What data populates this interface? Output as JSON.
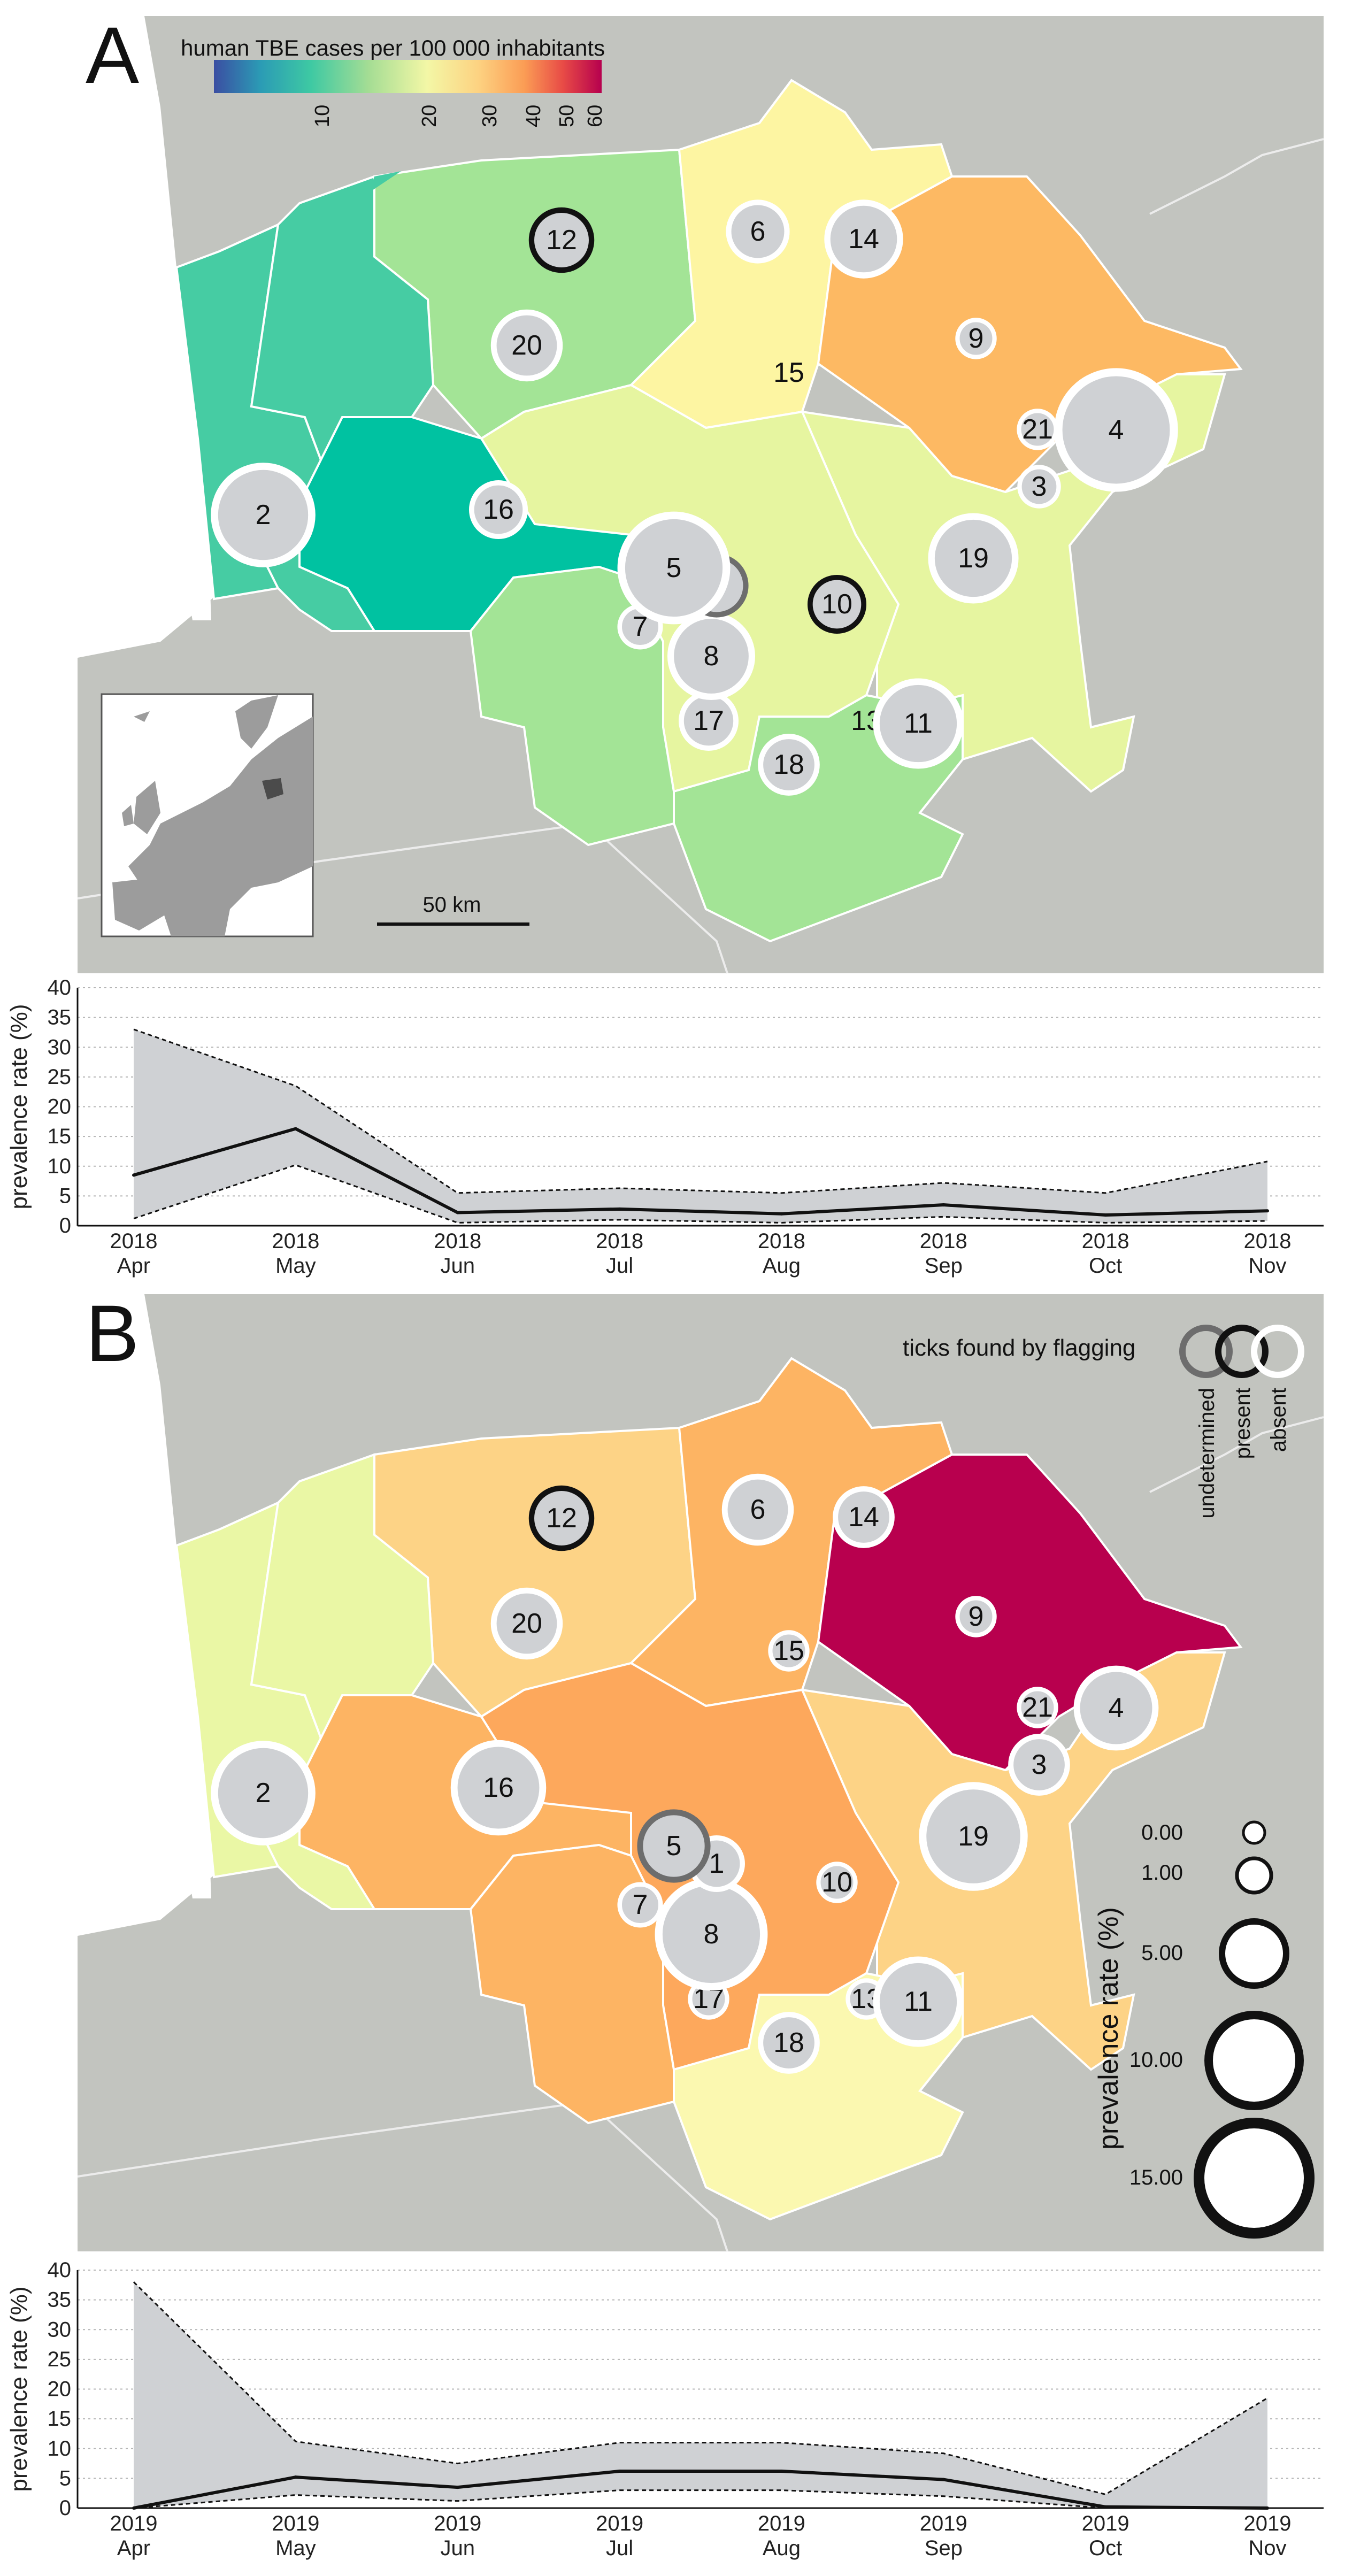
{
  "panels": [
    {
      "letter": "A",
      "colorbar": {
        "title": "human TBE cases per 100 000 inhabitants",
        "ticks": [
          "10",
          "20",
          "30",
          "40",
          "50",
          "60"
        ]
      },
      "scalebar": "50 km",
      "sites": [
        {
          "id": "1",
          "size": 2.0,
          "status": "undetermined"
        },
        {
          "id": "2",
          "size": 9.0,
          "status": "absent"
        },
        {
          "id": "3",
          "size": 0.4,
          "status": "absent"
        },
        {
          "id": "4",
          "size": 14.0,
          "status": "absent"
        },
        {
          "id": "5",
          "size": 11.0,
          "status": "absent"
        },
        {
          "id": "6",
          "size": 2.0,
          "status": "absent"
        },
        {
          "id": "7",
          "size": 0.5,
          "status": "absent"
        },
        {
          "id": "8",
          "size": 5.5,
          "status": "absent"
        },
        {
          "id": "9",
          "size": 0.3,
          "status": "absent"
        },
        {
          "id": "10",
          "size": 1.5,
          "status": "present"
        },
        {
          "id": "11",
          "size": 6.0,
          "status": "absent"
        },
        {
          "id": "12",
          "size": 2.2,
          "status": "present"
        },
        {
          "id": "13",
          "size": 0.0,
          "status": "none"
        },
        {
          "id": "14",
          "size": 4.0,
          "status": "absent"
        },
        {
          "id": "15",
          "size": 0.0,
          "status": "none"
        },
        {
          "id": "16",
          "size": 1.5,
          "status": "absent"
        },
        {
          "id": "17",
          "size": 1.6,
          "status": "absent"
        },
        {
          "id": "18",
          "size": 1.8,
          "status": "absent"
        },
        {
          "id": "19",
          "size": 6.0,
          "status": "absent"
        },
        {
          "id": "20",
          "size": 3.0,
          "status": "absent"
        },
        {
          "id": "21",
          "size": 0.3,
          "status": "absent"
        }
      ]
    },
    {
      "letter": "B",
      "legend_status": {
        "title": "ticks found by flagging",
        "labels": [
          "undetermined",
          "present",
          "absent"
        ]
      },
      "legend_size": {
        "title": "prevalence rate (%)",
        "values": [
          "0.00",
          "1.00",
          "5.00",
          "10.00",
          "15.00"
        ]
      },
      "sites": [
        {
          "id": "1",
          "size": 1.3,
          "status": "absent"
        },
        {
          "id": "2",
          "size": 9.0,
          "status": "absent"
        },
        {
          "id": "3",
          "size": 1.8,
          "status": "absent"
        },
        {
          "id": "4",
          "size": 5.0,
          "status": "absent"
        },
        {
          "id": "5",
          "size": 3.2,
          "status": "undetermined"
        },
        {
          "id": "6",
          "size": 3.0,
          "status": "absent"
        },
        {
          "id": "7",
          "size": 0.5,
          "status": "absent"
        },
        {
          "id": "8",
          "size": 11.0,
          "status": "absent"
        },
        {
          "id": "9",
          "size": 0.3,
          "status": "absent"
        },
        {
          "id": "10",
          "size": 0.3,
          "status": "absent"
        },
        {
          "id": "11",
          "size": 6.0,
          "status": "absent"
        },
        {
          "id": "12",
          "size": 2.2,
          "status": "present"
        },
        {
          "id": "13",
          "size": 0.3,
          "status": "absent"
        },
        {
          "id": "14",
          "size": 1.8,
          "status": "absent"
        },
        {
          "id": "15",
          "size": 0.3,
          "status": "absent"
        },
        {
          "id": "16",
          "size": 7.0,
          "status": "absent"
        },
        {
          "id": "17",
          "size": 0.3,
          "status": "absent"
        },
        {
          "id": "18",
          "size": 1.8,
          "status": "absent"
        },
        {
          "id": "19",
          "size": 10.0,
          "status": "absent"
        },
        {
          "id": "20",
          "size": 3.0,
          "status": "absent"
        },
        {
          "id": "21",
          "size": 0.3,
          "status": "absent"
        }
      ]
    }
  ],
  "chart_data": [
    {
      "type": "area",
      "panel": "A",
      "xlabel": "",
      "ylabel": "prevalence rate (%)",
      "ylim": [
        0,
        40
      ],
      "yticks": [
        "0",
        "5",
        "10",
        "15",
        "20",
        "25",
        "30",
        "35",
        "40"
      ],
      "x": [
        "2018\nApr",
        "2018\nMay",
        "2018\nJun",
        "2018\nJul",
        "2018\nAug",
        "2018\nSep",
        "2018\nOct",
        "2018\nNov"
      ],
      "series": [
        {
          "name": "upper",
          "values": [
            33,
            23.5,
            5.5,
            6.3,
            5.5,
            7.2,
            5.5,
            10.8
          ]
        },
        {
          "name": "prevalence",
          "values": [
            8.5,
            16.3,
            2.2,
            2.8,
            2.0,
            3.5,
            1.8,
            2.5
          ]
        },
        {
          "name": "lower",
          "values": [
            1.2,
            10.2,
            0.5,
            1.0,
            0.5,
            1.5,
            0.5,
            0.8
          ]
        }
      ]
    },
    {
      "type": "area",
      "panel": "B",
      "xlabel": "",
      "ylabel": "prevalence rate (%)",
      "ylim": [
        0,
        40
      ],
      "yticks": [
        "0",
        "5",
        "10",
        "15",
        "20",
        "25",
        "30",
        "35",
        "40"
      ],
      "x": [
        "2019\nApr",
        "2019\nMay",
        "2019\nJun",
        "2019\nJul",
        "2019\nAug",
        "2019\nSep",
        "2019\nOct",
        "2019\nNov"
      ],
      "series": [
        {
          "name": "upper",
          "values": [
            38,
            11.2,
            7.5,
            11,
            11,
            9.2,
            2.3,
            18.5
          ]
        },
        {
          "name": "prevalence",
          "values": [
            0,
            5.2,
            3.5,
            6.2,
            6.2,
            4.8,
            0.2,
            0
          ]
        },
        {
          "name": "lower",
          "values": [
            0,
            2.2,
            1.2,
            3.0,
            3.0,
            2.0,
            0,
            0
          ]
        }
      ]
    }
  ],
  "colors": {
    "map_background": "#c2c4bf",
    "sea": "#ffffff",
    "site_fill": "#cfd1d4",
    "ring_absent": "#ffffff",
    "ring_present": "#111111",
    "ring_undetermined": "#6d6d6d",
    "band": "#cfd1d4"
  }
}
